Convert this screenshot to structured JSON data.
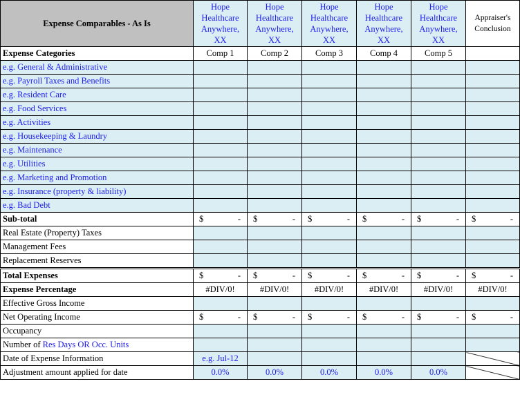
{
  "header": {
    "title": "Expense Comparables - As Is",
    "comps": [
      "Hope Healthcare Anywhere, XX",
      "Hope Healthcare Anywhere, XX",
      "Hope Healthcare Anywhere, XX",
      "Hope Healthcare Anywhere, XX",
      "Hope Healthcare Anywhere, XX"
    ],
    "conclusion": "Appraiser's Conclusion"
  },
  "subheader": {
    "label": "Expense Categories",
    "comps": [
      "Comp 1",
      "Comp 2",
      "Comp 3",
      "Comp 4",
      "Comp 5"
    ]
  },
  "colors": {
    "input_fill": "#DAEEF3",
    "header_fill": "#C0C0C0",
    "input_text": "#2020EE"
  },
  "rows": [
    {
      "label": "e.g. General & Administrative",
      "type": "input",
      "label_blue": true
    },
    {
      "label": "e.g. Payroll Taxes and Benefits",
      "type": "input",
      "label_blue": true
    },
    {
      "label": "e.g. Resident Care",
      "type": "input",
      "label_blue": true
    },
    {
      "label": "e.g. Food Services",
      "type": "input",
      "label_blue": true
    },
    {
      "label": "e.g. Activities",
      "type": "input",
      "label_blue": true
    },
    {
      "label": "e.g. Housekeeping & Laundry",
      "type": "input",
      "label_blue": true
    },
    {
      "label": "e.g. Maintenance",
      "type": "input",
      "label_blue": true
    },
    {
      "label": "e.g. Utilities",
      "type": "input",
      "label_blue": true
    },
    {
      "label": "e.g. Marketing and Promotion",
      "type": "input",
      "label_blue": true
    },
    {
      "label": "e.g. Insurance (property & liability)",
      "type": "input",
      "label_blue": true
    },
    {
      "label": "e.g. Bad Debt",
      "type": "input",
      "label_blue": true
    },
    {
      "label": "Sub-total",
      "type": "dollar",
      "bold": true,
      "currency": "$",
      "value": "-"
    },
    {
      "label": "Real Estate (Property) Taxes",
      "type": "input"
    },
    {
      "label": "Management Fees",
      "type": "input"
    },
    {
      "label": "Replacement Reserves",
      "type": "input"
    },
    {
      "label": "Total Expenses",
      "type": "dollar",
      "bold": true,
      "double": true,
      "currency": "$",
      "value": "-"
    },
    {
      "label": "Expense Percentage",
      "type": "text",
      "bold": true,
      "values": [
        "#DIV/0!",
        "#DIV/0!",
        "#DIV/0!",
        "#DIV/0!",
        "#DIV/0!",
        "#DIV/0!"
      ]
    },
    {
      "label": "Effective Gross Income",
      "type": "input"
    },
    {
      "label": "Net Operating Income",
      "type": "dollar",
      "currency": "$",
      "value": "-"
    },
    {
      "label": "Occupancy",
      "type": "input"
    },
    {
      "label": "Number of ",
      "label_blue_part": "Res Days OR Occ. Units",
      "type": "input"
    },
    {
      "label": "Date of Expense Information",
      "type": "date",
      "values": [
        "e.g. Jul-12",
        "",
        "",
        "",
        ""
      ]
    },
    {
      "label": "Adjustment amount applied for date",
      "type": "pct",
      "values": [
        "0.0%",
        "0.0%",
        "0.0%",
        "0.0%",
        "0.0%"
      ]
    }
  ]
}
